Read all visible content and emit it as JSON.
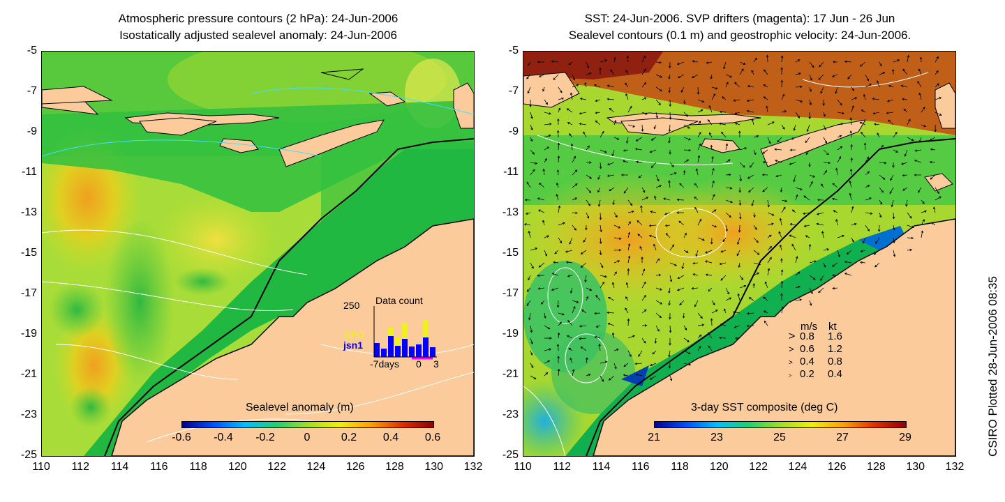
{
  "left_panel": {
    "title_line1": "Atmospheric pressure contours (2 hPa): 24-Jun-2006",
    "title_line2": "Isostatically adjusted sealevel anomaly: 24-Jun-2006",
    "colorbar": {
      "label": "Sealevel anomaly (m)",
      "ticks": [
        "-0.6",
        "-0.4",
        "-0.2",
        "0",
        "0.2",
        "0.4",
        "0.6"
      ],
      "range": [
        -0.6,
        0.6
      ],
      "colors": [
        "#000090",
        "#0050ff",
        "#00c0ff",
        "#20d070",
        "#a0e020",
        "#f0f000",
        "#ffa000",
        "#e03000",
        "#900000"
      ]
    },
    "inset": {
      "title": "Data count",
      "ymax_label": "250",
      "legend_gfo": "GFO",
      "legend_jsn1": "jsn1",
      "x_left": "-7days",
      "x_mid": "0",
      "x_right": "3",
      "gfo_color": "#f0f020",
      "jsn1_color": "#0000ff"
    }
  },
  "right_panel": {
    "title_line1": "SST: 24-Jun-2006. SVP drifters (magenta): 17 Jun - 26 Jun",
    "title_line2": "Sealevel contours (0.1 m) and geostrophic velocity: 24-Jun-2006.",
    "colorbar": {
      "label": "3-day SST composite (deg C)",
      "ticks": [
        "21",
        "23",
        "25",
        "27",
        "29"
      ],
      "range": [
        21,
        29
      ],
      "colors": [
        "#000090",
        "#0050ff",
        "#00c0ff",
        "#20d070",
        "#a0e020",
        "#f0f000",
        "#ffa000",
        "#e03000",
        "#900000"
      ]
    },
    "velocity_legend": {
      "header_ms": "m/s",
      "header_kt": "kt",
      "rows": [
        {
          "ms": "0.8",
          "kt": "1.6"
        },
        {
          "ms": "0.6",
          "kt": "1.2"
        },
        {
          "ms": "0.4",
          "kt": "0.8"
        },
        {
          "ms": "0.2",
          "kt": "0.4"
        }
      ]
    }
  },
  "axes": {
    "y_ticks": [
      "-5",
      "-7",
      "-9",
      "-11",
      "-13",
      "-15",
      "-17",
      "-19",
      "-21",
      "-23",
      "-25"
    ],
    "x_ticks": [
      "110",
      "112",
      "114",
      "116",
      "118",
      "120",
      "122",
      "124",
      "126",
      "128",
      "130",
      "132"
    ]
  },
  "credit": "CSIRO Plotted 28-Jun-2006 08:35",
  "colors": {
    "land": "#fbcb9c",
    "ocean_green": "#30cc40",
    "coastline": "#000000"
  }
}
